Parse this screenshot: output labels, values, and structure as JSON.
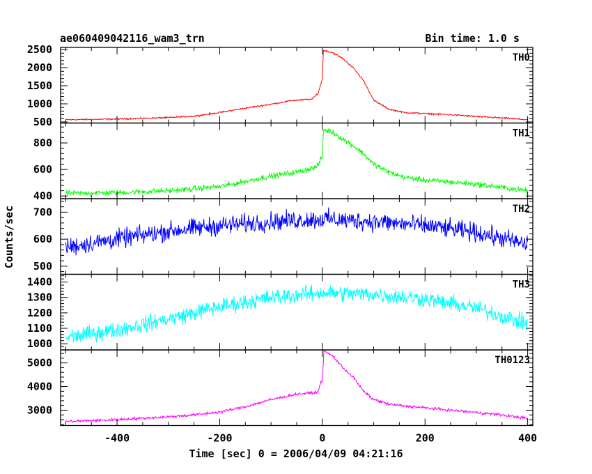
{
  "header": {
    "title": "ae060409042116_wam3_trn",
    "bin_time": "Bin time: 1.0 s"
  },
  "axes": {
    "xlabel": "Time [sec] 0 = 2006/04/09 04:21:16",
    "ylabel": "Counts/sec"
  },
  "chart_data": {
    "type": "line",
    "xlim": [
      -510,
      410
    ],
    "x_ticks": [
      -400,
      -200,
      0,
      200,
      400
    ],
    "bin_time_s": 1.0,
    "panels": [
      {
        "name": "TH0",
        "color": "#ff0000",
        "ylim": [
          470,
          2560
        ],
        "y_ticks": [
          500,
          1000,
          1500,
          2000,
          2500
        ],
        "noise": 18,
        "profile": [
          [
            -500,
            560
          ],
          [
            -400,
            580
          ],
          [
            -300,
            620
          ],
          [
            -250,
            660
          ],
          [
            -200,
            760
          ],
          [
            -150,
            880
          ],
          [
            -100,
            990
          ],
          [
            -60,
            1090
          ],
          [
            -20,
            1130
          ],
          [
            -8,
            1300
          ],
          [
            0,
            1700
          ],
          [
            2,
            2480
          ],
          [
            20,
            2420
          ],
          [
            40,
            2250
          ],
          [
            60,
            2000
          ],
          [
            80,
            1650
          ],
          [
            100,
            1100
          ],
          [
            130,
            850
          ],
          [
            160,
            760
          ],
          [
            200,
            730
          ],
          [
            250,
            700
          ],
          [
            300,
            650
          ],
          [
            350,
            610
          ],
          [
            400,
            560
          ]
        ]
      },
      {
        "name": "TH1",
        "color": "#00ff00",
        "ylim": [
          380,
          950
        ],
        "y_ticks": [
          400,
          600,
          800
        ],
        "noise": 18,
        "profile": [
          [
            -500,
            420
          ],
          [
            -400,
            425
          ],
          [
            -300,
            440
          ],
          [
            -200,
            470
          ],
          [
            -150,
            510
          ],
          [
            -100,
            550
          ],
          [
            -50,
            580
          ],
          [
            -10,
            620
          ],
          [
            0,
            700
          ],
          [
            2,
            900
          ],
          [
            20,
            880
          ],
          [
            40,
            830
          ],
          [
            60,
            780
          ],
          [
            80,
            720
          ],
          [
            100,
            640
          ],
          [
            130,
            580
          ],
          [
            160,
            540
          ],
          [
            200,
            520
          ],
          [
            300,
            490
          ],
          [
            400,
            440
          ]
        ]
      },
      {
        "name": "TH2",
        "color": "#0000ff",
        "ylim": [
          470,
          750
        ],
        "y_ticks": [
          500,
          600,
          700
        ],
        "noise": 30,
        "profile": [
          [
            -500,
            570
          ],
          [
            -400,
            600
          ],
          [
            -300,
            630
          ],
          [
            -200,
            650
          ],
          [
            -100,
            665
          ],
          [
            0,
            675
          ],
          [
            100,
            665
          ],
          [
            200,
            650
          ],
          [
            300,
            625
          ],
          [
            400,
            580
          ]
        ]
      },
      {
        "name": "TH3",
        "color": "#00ffff",
        "ylim": [
          960,
          1450
        ],
        "y_ticks": [
          1000,
          1100,
          1200,
          1300,
          1400
        ],
        "noise": 45,
        "profile": [
          [
            -500,
            1040
          ],
          [
            -400,
            1090
          ],
          [
            -300,
            1160
          ],
          [
            -200,
            1240
          ],
          [
            -100,
            1300
          ],
          [
            0,
            1330
          ],
          [
            100,
            1320
          ],
          [
            200,
            1290
          ],
          [
            300,
            1230
          ],
          [
            400,
            1130
          ]
        ]
      },
      {
        "name": "TH0123",
        "color": "#ff00ff",
        "ylim": [
          2350,
          5550
        ],
        "y_ticks": [
          3000,
          4000,
          5000
        ],
        "noise": 50,
        "profile": [
          [
            -500,
            2520
          ],
          [
            -400,
            2600
          ],
          [
            -300,
            2720
          ],
          [
            -250,
            2800
          ],
          [
            -200,
            2920
          ],
          [
            -150,
            3150
          ],
          [
            -100,
            3450
          ],
          [
            -50,
            3680
          ],
          [
            -10,
            3750
          ],
          [
            0,
            4300
          ],
          [
            3,
            5500
          ],
          [
            20,
            5300
          ],
          [
            40,
            4800
          ],
          [
            60,
            4400
          ],
          [
            80,
            3800
          ],
          [
            100,
            3450
          ],
          [
            130,
            3250
          ],
          [
            160,
            3180
          ],
          [
            200,
            3100
          ],
          [
            250,
            3000
          ],
          [
            300,
            2900
          ],
          [
            350,
            2800
          ],
          [
            400,
            2650
          ]
        ]
      }
    ]
  }
}
